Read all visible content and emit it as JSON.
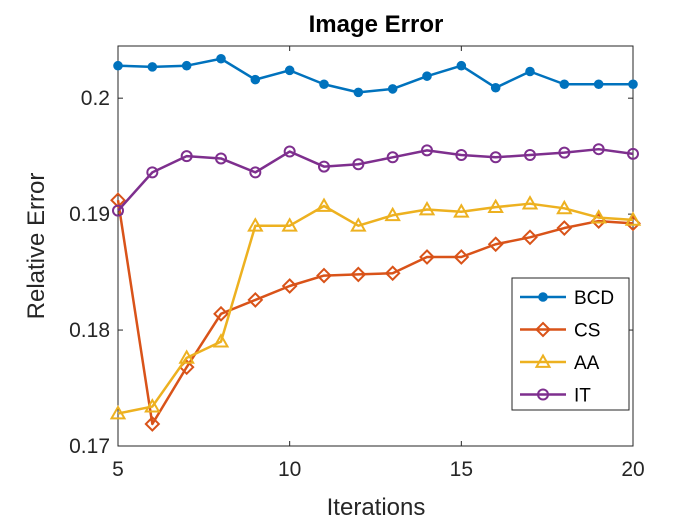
{
  "chart_data": {
    "type": "line",
    "title": "Image Error",
    "xlabel": "Iterations",
    "ylabel": "Relative Error",
    "xlim": [
      5,
      20
    ],
    "ylim": [
      0.17,
      0.2045
    ],
    "x_ticks": [
      5,
      10,
      15,
      20
    ],
    "x_tick_labels": [
      "5",
      "10",
      "15",
      "20"
    ],
    "y_ticks": [
      0.17,
      0.18,
      0.19,
      0.2
    ],
    "y_tick_labels": [
      "0.17",
      "0.18",
      "0.19",
      "0.2"
    ],
    "grid": false,
    "legend_position": "right",
    "x": [
      5,
      6,
      7,
      8,
      9,
      10,
      11,
      12,
      13,
      14,
      15,
      16,
      17,
      18,
      19,
      20
    ],
    "series": [
      {
        "name": "BCD",
        "color": "#0072BD",
        "marker": "circle-filled",
        "values": [
          0.2028,
          0.2027,
          0.2028,
          0.2034,
          0.2016,
          0.2024,
          0.2012,
          0.2005,
          0.2008,
          0.2019,
          0.2028,
          0.2009,
          0.2023,
          0.2012,
          0.2012,
          0.2012
        ]
      },
      {
        "name": "CS",
        "color": "#D95319",
        "marker": "diamond-open",
        "values": [
          0.1912,
          0.1719,
          0.1768,
          0.1814,
          0.1826,
          0.1838,
          0.1847,
          0.1848,
          0.1849,
          0.1863,
          0.1863,
          0.1874,
          0.188,
          0.1888,
          0.1894,
          0.1892
        ]
      },
      {
        "name": "AA",
        "color": "#EDB120",
        "marker": "triangle-open",
        "values": [
          0.1728,
          0.1734,
          0.1776,
          0.179,
          0.189,
          0.189,
          0.1907,
          0.189,
          0.1899,
          0.1904,
          0.1902,
          0.1906,
          0.1909,
          0.1905,
          0.1897,
          0.1895
        ]
      },
      {
        "name": "IT",
        "color": "#7E2F8E",
        "marker": "circle-open",
        "values": [
          0.1903,
          0.1936,
          0.195,
          0.1948,
          0.1936,
          0.1954,
          0.1941,
          0.1943,
          0.1949,
          0.1955,
          0.1951,
          0.1949,
          0.1951,
          0.1953,
          0.1956,
          0.1952
        ]
      }
    ]
  }
}
